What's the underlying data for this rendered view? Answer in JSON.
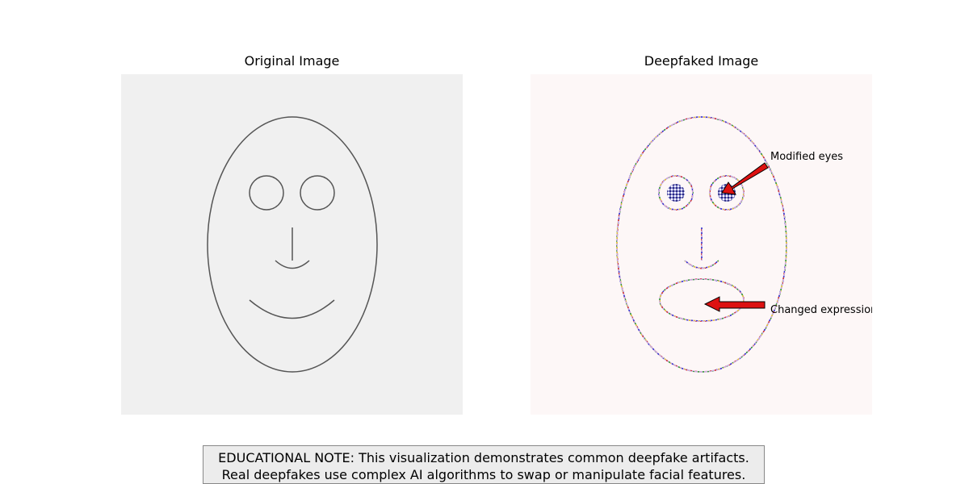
{
  "panels": {
    "original_title": "Original Image",
    "deepfake_title": "Deepfaked Image"
  },
  "annotations": {
    "eyes": "Modified eyes",
    "expression": "Changed expression"
  },
  "note": {
    "line1": "EDUCATIONAL NOTE: This visualization demonstrates common deepfake artifacts.",
    "line2": "Real deepfakes use complex AI algorithms to swap or manipulate facial features."
  },
  "colors": {
    "original_bg": "#f0f0f0",
    "deepfake_bg": "#fdf7f7",
    "face_line": "#555555",
    "arrow_fill": "#dd1111",
    "note_bg": "#ececec"
  }
}
